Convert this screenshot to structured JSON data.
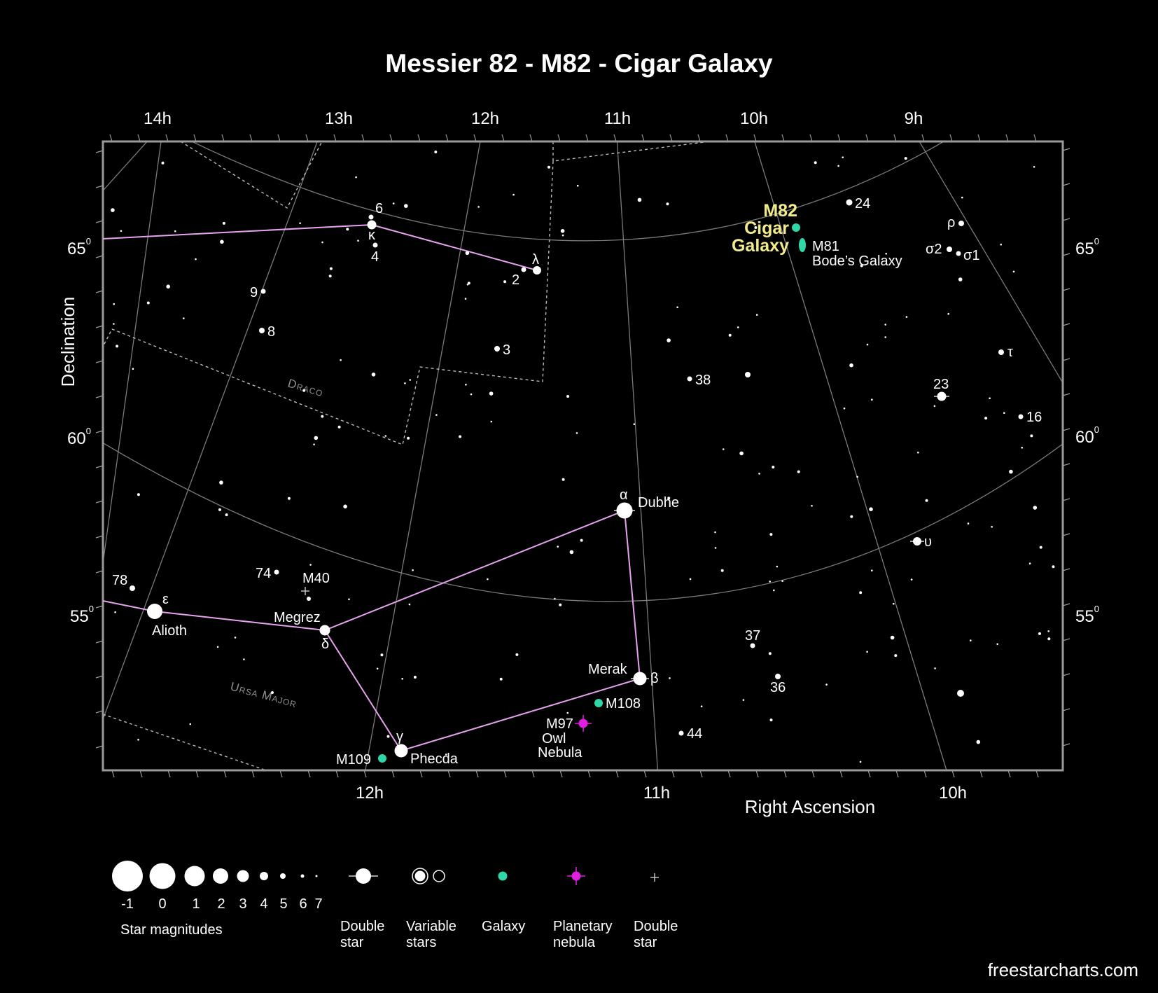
{
  "title": "Messier 82 - M82 - Cigar Galaxy",
  "website": "freestarcharts.com",
  "axes": {
    "top_ra_ticks": [
      "14h",
      "13h",
      "12h",
      "11h",
      "10h",
      "9h"
    ],
    "bottom_ra_ticks": [
      "12h",
      "11h",
      "10h"
    ],
    "bottom_label": "Right Ascension",
    "left_label": "Declination",
    "dec_ticks": [
      {
        "value": "65",
        "sup": "0"
      },
      {
        "value": "60",
        "sup": "0"
      },
      {
        "value": "55",
        "sup": "0"
      }
    ]
  },
  "constellations": [
    {
      "name": "Draco",
      "text": "Draco"
    },
    {
      "name": "Ursa Major",
      "text": "Ursa Major"
    }
  ],
  "target": {
    "name": "M82",
    "lines": [
      "M82",
      "Cigar",
      "Galaxy"
    ]
  },
  "deep_sky_objects": [
    {
      "id": "m81",
      "label_lines": [
        "M81",
        "Bode’s Galaxy"
      ],
      "type": "galaxy"
    },
    {
      "id": "m108",
      "label_lines": [
        "M108"
      ],
      "type": "galaxy"
    },
    {
      "id": "m109",
      "label_lines": [
        "M109"
      ],
      "type": "galaxy"
    },
    {
      "id": "m97",
      "label_lines": [
        "M97",
        "Owl",
        "Nebula"
      ],
      "type": "planetary nebula"
    },
    {
      "id": "m40",
      "label_lines": [
        "M40"
      ],
      "type": "double star"
    }
  ],
  "named_stars": [
    "Dubhe",
    "Merak",
    "Phecda",
    "Megrez",
    "Alioth"
  ],
  "star_labels": [
    "6",
    "κ",
    "4",
    "λ",
    "2",
    "9",
    "8",
    "3",
    "38",
    "23",
    "16",
    "τ",
    "ρ",
    "σ2",
    "σ1",
    "24",
    "α",
    "υ",
    "37",
    "36",
    "β",
    "44",
    "γ",
    "δ",
    "ε",
    "78",
    "74"
  ],
  "legend": {
    "magnitudes": [
      "-1",
      "0",
      "1",
      "2",
      "3",
      "4",
      "5",
      "6",
      "7"
    ],
    "magnitudes_caption": "Star magnitudes",
    "symbols": [
      {
        "lines": [
          "Double",
          "star"
        ]
      },
      {
        "lines": [
          "Variable",
          "stars"
        ]
      },
      {
        "lines": [
          "Galaxy"
        ]
      },
      {
        "lines": [
          "Planetary",
          "nebula"
        ]
      },
      {
        "lines": [
          "Double",
          "star"
        ]
      }
    ]
  },
  "colors": {
    "background": "#000000",
    "stick_figure": "#e6a2ee",
    "galaxy": "#2fd6a8",
    "planetary_nebula": "#e020e0",
    "target_label": "#f2eb8a",
    "grid": "#8a8a8a",
    "frame": "#9a9a9a"
  }
}
